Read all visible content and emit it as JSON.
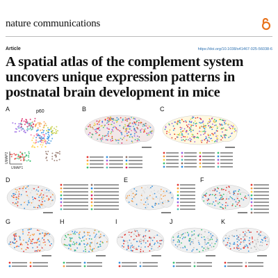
{
  "header": {
    "journal": "nature communications",
    "section": "Article",
    "doi": "https://doi.org/10.1038/s41467-025-56038-6"
  },
  "title": [
    "A spatial atlas of the complement system",
    "uncovers unique expression patterns in",
    "postnatal brain development in mice"
  ],
  "figure": {
    "panels": [
      "A",
      "B",
      "C",
      "D",
      "E",
      "F",
      "G",
      "H",
      "I",
      "J",
      "K"
    ],
    "age_label": "p60",
    "axis_x": "UMAP1",
    "axis_y": "UMAP2"
  }
}
